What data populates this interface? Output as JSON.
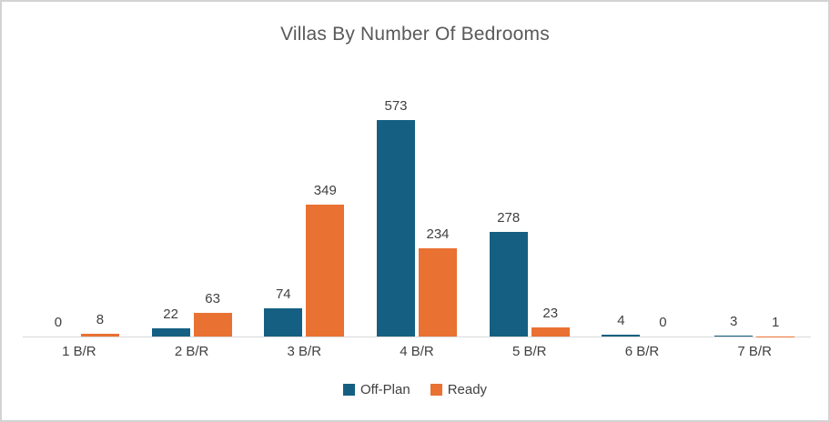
{
  "title": "Villas By Number Of Bedrooms",
  "colors": {
    "off_plan": "#156082",
    "ready": "#E97132",
    "frame_border": "#D3D3D3",
    "axis_line": "#D9D9D9",
    "title_text": "#595959",
    "label_text": "#404040"
  },
  "chart_data": {
    "type": "bar",
    "title": "Villas By Number Of Bedrooms",
    "categories": [
      "1 B/R",
      "2 B/R",
      "3 B/R",
      "4 B/R",
      "5 B/R",
      "6 B/R",
      "7 B/R"
    ],
    "series": [
      {
        "name": "Off-Plan",
        "color": "#156082",
        "values": [
          0,
          22,
          74,
          573,
          278,
          4,
          3
        ]
      },
      {
        "name": "Ready",
        "color": "#E97132",
        "values": [
          8,
          63,
          349,
          234,
          23,
          0,
          1
        ]
      }
    ],
    "xlabel": "",
    "ylabel": "",
    "ylim": [
      0,
      600
    ],
    "grid": false,
    "data_labels": true,
    "legend_position": "bottom"
  }
}
